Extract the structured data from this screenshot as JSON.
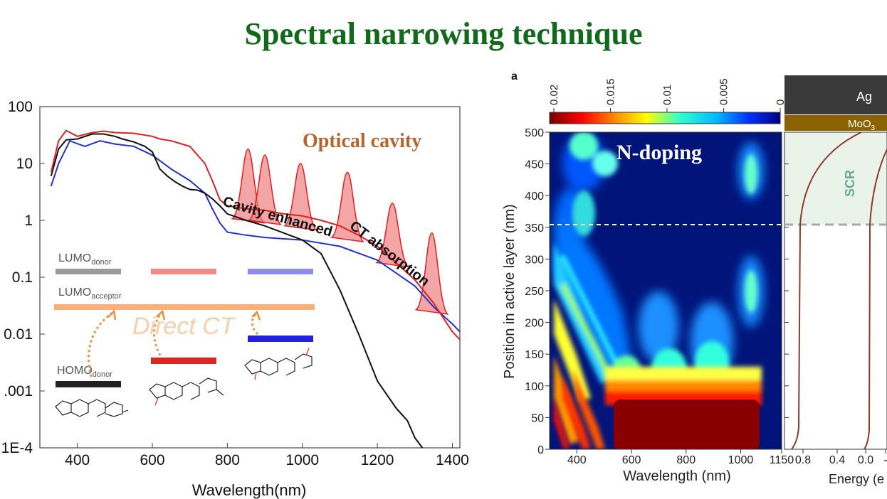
{
  "slide": {
    "title": "Spectral narrowing technique"
  },
  "chart_data": [
    {
      "type": "line",
      "title": "",
      "xlabel": "Wavelength(nm)",
      "ylabel": "",
      "y_scale": "log",
      "xlim": [
        300,
        1420
      ],
      "ylim": [
        0.0001,
        100
      ],
      "x_ticks": [
        "400",
        "600",
        "800",
        "1000",
        "1200",
        "1400"
      ],
      "y_ticks": [
        "100",
        "10",
        "1",
        "0.1",
        "0.01",
        ".001",
        "1E-4"
      ],
      "annotations": {
        "cavity": "Optical cavity",
        "curve": "Cavity enhanced CT absorption",
        "direct": "Direct CT",
        "lumo_donor_main": "LUMO",
        "lumo_donor_sub": "donor",
        "lumo_acceptor_main": "LUMO",
        "lumo_acceptor_sub": "acceptor",
        "homo_donor_main": "HOMO",
        "homo_donor_sub": "donor"
      },
      "colors": {
        "black": "#111111",
        "red": "#e02020",
        "blue": "#2233cc",
        "cavity_fill": "#f08080",
        "direct": "#f6b27a"
      },
      "series": [
        {
          "color": "black",
          "x": [
            330,
            350,
            370,
            400,
            440,
            470,
            500,
            520,
            550,
            580,
            600,
            620,
            640,
            660,
            680,
            700,
            720,
            740,
            760,
            780,
            800,
            850,
            900,
            950,
            1000,
            1050,
            1100,
            1150,
            1200,
            1250,
            1280,
            1300,
            1320
          ],
          "y": [
            6,
            18,
            26,
            27,
            33,
            33,
            30,
            27,
            24,
            20,
            16,
            8,
            6,
            4.8,
            4,
            3.5,
            3.4,
            3,
            2.4,
            1.8,
            1.3,
            1,
            0.8,
            0.6,
            0.45,
            0.26,
            0.06,
            0.01,
            0.0015,
            0.0005,
            0.0003,
            0.00015,
            0.0001
          ]
        },
        {
          "color": "red",
          "x": [
            330,
            350,
            370,
            400,
            440,
            470,
            500,
            550,
            600,
            620,
            650,
            700,
            740,
            760,
            780,
            800,
            850,
            900,
            950,
            1000,
            1050,
            1100,
            1150,
            1200,
            1250,
            1300,
            1350,
            1400,
            1420
          ],
          "y": [
            7,
            25,
            38,
            30,
            35,
            37,
            35,
            34,
            30,
            27,
            25,
            20,
            10,
            5,
            2.3,
            1.8,
            1.6,
            1.5,
            1.3,
            1.2,
            1.0,
            0.8,
            0.55,
            0.35,
            0.18,
            0.09,
            0.035,
            0.011,
            0.008
          ]
        },
        {
          "color": "blue",
          "x": [
            330,
            350,
            380,
            420,
            460,
            500,
            550,
            600,
            650,
            700,
            740,
            760,
            780,
            800,
            850,
            900,
            1000,
            1100,
            1200,
            1300,
            1350,
            1400,
            1420
          ],
          "y": [
            4,
            10,
            25,
            20,
            25,
            22,
            20,
            14,
            8,
            5,
            3,
            1.6,
            0.9,
            0.62,
            0.55,
            0.5,
            0.45,
            0.35,
            0.2,
            0.07,
            0.03,
            0.015,
            0.011
          ]
        }
      ],
      "cavity_peaks": [
        {
          "x": 855,
          "y": 18,
          "base": 1.6
        },
        {
          "x": 900,
          "y": 14,
          "base": 1.5
        },
        {
          "x": 995,
          "y": 10,
          "base": 1.2
        },
        {
          "x": 1120,
          "y": 7,
          "base": 0.75
        },
        {
          "x": 1240,
          "y": 2,
          "base": 0.27
        },
        {
          "x": 1345,
          "y": 0.6,
          "base": 0.04
        }
      ]
    },
    {
      "type": "heatmap",
      "panel_label": "a",
      "overlay": "N-doping",
      "xlabel": "Wavelength (nm)",
      "ylabel": "Position in active layer (nm)",
      "xlim": [
        300,
        1150
      ],
      "ylim": [
        0,
        500
      ],
      "x_ticks": [
        "400",
        "600",
        "800",
        "1000",
        "1150"
      ],
      "y_ticks": [
        "500",
        "450",
        "400",
        "350",
        "300",
        "250",
        "200",
        "150",
        "100",
        "50",
        "0"
      ],
      "dashed_line_y": 353,
      "colorbar_ticks": [
        "0.02",
        "0.015",
        "0.01",
        "0.005",
        "0"
      ],
      "colorscale": [
        "#7a0000",
        "#ff0000",
        "#ff9900",
        "#ffff00",
        "#33ffcc",
        "#00bbff",
        "#0033ff",
        "#00007f"
      ]
    },
    {
      "type": "line",
      "xlabel": "Energy (e",
      "x_ticks": [
        "0.8",
        "0.4",
        "0.0",
        "-"
      ],
      "layers": [
        {
          "label": "Ag",
          "color": "#3a3a3a"
        },
        {
          "label": "MoO",
          "sub": "3",
          "color": "#8a6200"
        }
      ],
      "region_label": "SCR",
      "region_color": "#e9f3ea"
    }
  ]
}
